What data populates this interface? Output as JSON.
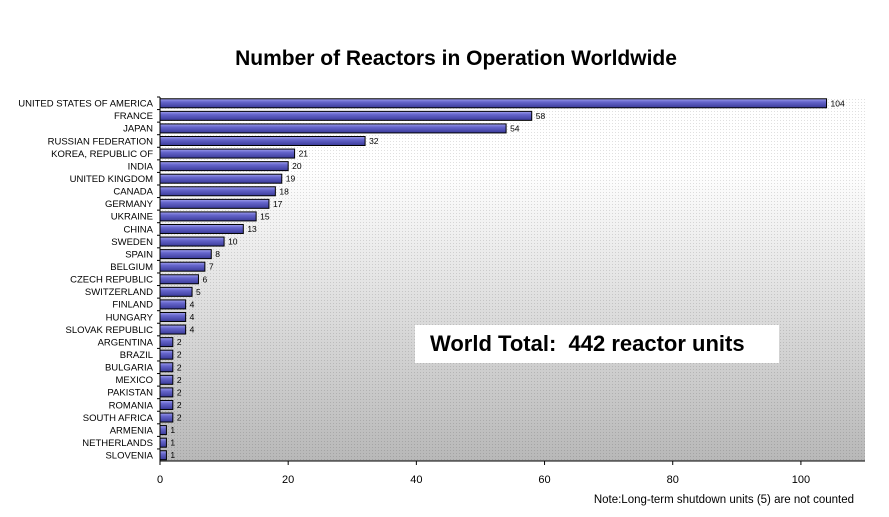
{
  "chart_data": {
    "type": "bar",
    "orientation": "horizontal",
    "title": "Number of Reactors in Operation Worldwide",
    "categories": [
      "UNITED STATES OF AMERICA",
      "FRANCE",
      "JAPAN",
      "RUSSIAN FEDERATION",
      "KOREA, REPUBLIC OF",
      "INDIA",
      "UNITED KINGDOM",
      "CANADA",
      "GERMANY",
      "UKRAINE",
      "CHINA",
      "SWEDEN",
      "SPAIN",
      "BELGIUM",
      "CZECH REPUBLIC",
      "SWITZERLAND",
      "FINLAND",
      "HUNGARY",
      "SLOVAK REPUBLIC",
      "ARGENTINA",
      "BRAZIL",
      "BULGARIA",
      "MEXICO",
      "PAKISTAN",
      "ROMANIA",
      "SOUTH AFRICA",
      "ARMENIA",
      "NETHERLANDS",
      "SLOVENIA"
    ],
    "values": [
      104,
      58,
      54,
      32,
      21,
      20,
      19,
      18,
      17,
      15,
      13,
      10,
      8,
      7,
      6,
      5,
      4,
      4,
      4,
      2,
      2,
      2,
      2,
      2,
      2,
      2,
      1,
      1,
      1
    ],
    "xlim": [
      0,
      110
    ],
    "xticks": [
      0,
      20,
      40,
      60,
      80,
      100
    ],
    "xlabel": "",
    "ylabel": "",
    "grid": false,
    "data_labels": true,
    "annotation": "World Total:  442 reactor units",
    "note": "Note:Long-term shutdown units (5) are not counted",
    "colors": {
      "bar_fill": "#6666cc",
      "bar_highlight": "#a0a0ee",
      "bar_outline": "#000000",
      "plot_gradient_top": "#ffffff",
      "plot_gradient_bottom": "#b8b8b8"
    }
  }
}
